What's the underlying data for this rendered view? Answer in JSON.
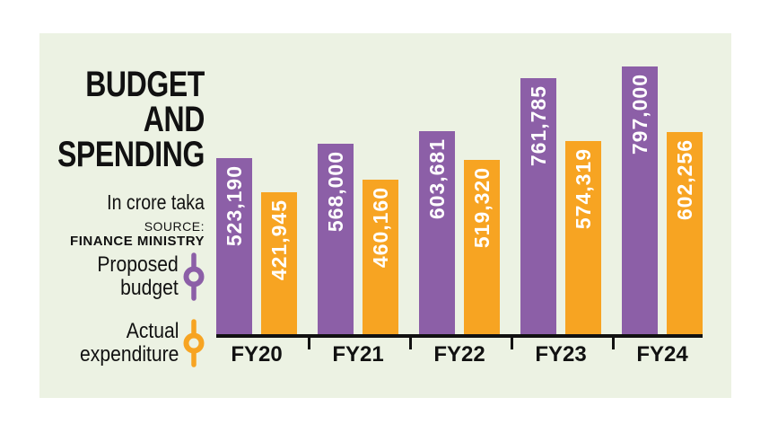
{
  "panel": {
    "title": "BUDGET\nAND\nSPENDING",
    "subtitle": "In crore taka",
    "source_label": "SOURCE:",
    "source_name": "FINANCE MINISTRY"
  },
  "legend": [
    {
      "label": "Proposed\nbudget",
      "series_key": "budget",
      "color": "#8C5FA7"
    },
    {
      "label": "Actual\nexpenditure",
      "series_key": "expenditure",
      "color": "#F7A422"
    }
  ],
  "colors": {
    "panel_bg": "#ECF2E3",
    "budget": "#8C5FA7",
    "expenditure": "#F7A422",
    "axis": "#111111",
    "value_label": "#FFFFFF",
    "text": "#111111"
  },
  "chart_data": {
    "type": "bar",
    "title": "BUDGET AND SPENDING",
    "unit": "crore taka",
    "categories": [
      "FY20",
      "FY21",
      "FY22",
      "FY23",
      "FY24"
    ],
    "series": [
      {
        "name": "Proposed budget",
        "key": "budget",
        "color": "#8C5FA7",
        "values": [
          523190,
          568000,
          603681,
          761785,
          797000
        ],
        "labels": [
          "523,190",
          "568,000",
          "603,681",
          "761,785",
          "797,000"
        ]
      },
      {
        "name": "Actual expenditure",
        "key": "expenditure",
        "color": "#F7A422",
        "values": [
          421945,
          460160,
          519320,
          574319,
          602256
        ],
        "labels": [
          "421,945",
          "460,160",
          "519,320",
          "574,319",
          "602,256"
        ]
      }
    ],
    "ylim": [
      0,
      800000
    ],
    "grid": false,
    "legend_position": "left",
    "value_label_style": "inside bar top, rotated 90deg reading bottom-to-top, white bold"
  }
}
